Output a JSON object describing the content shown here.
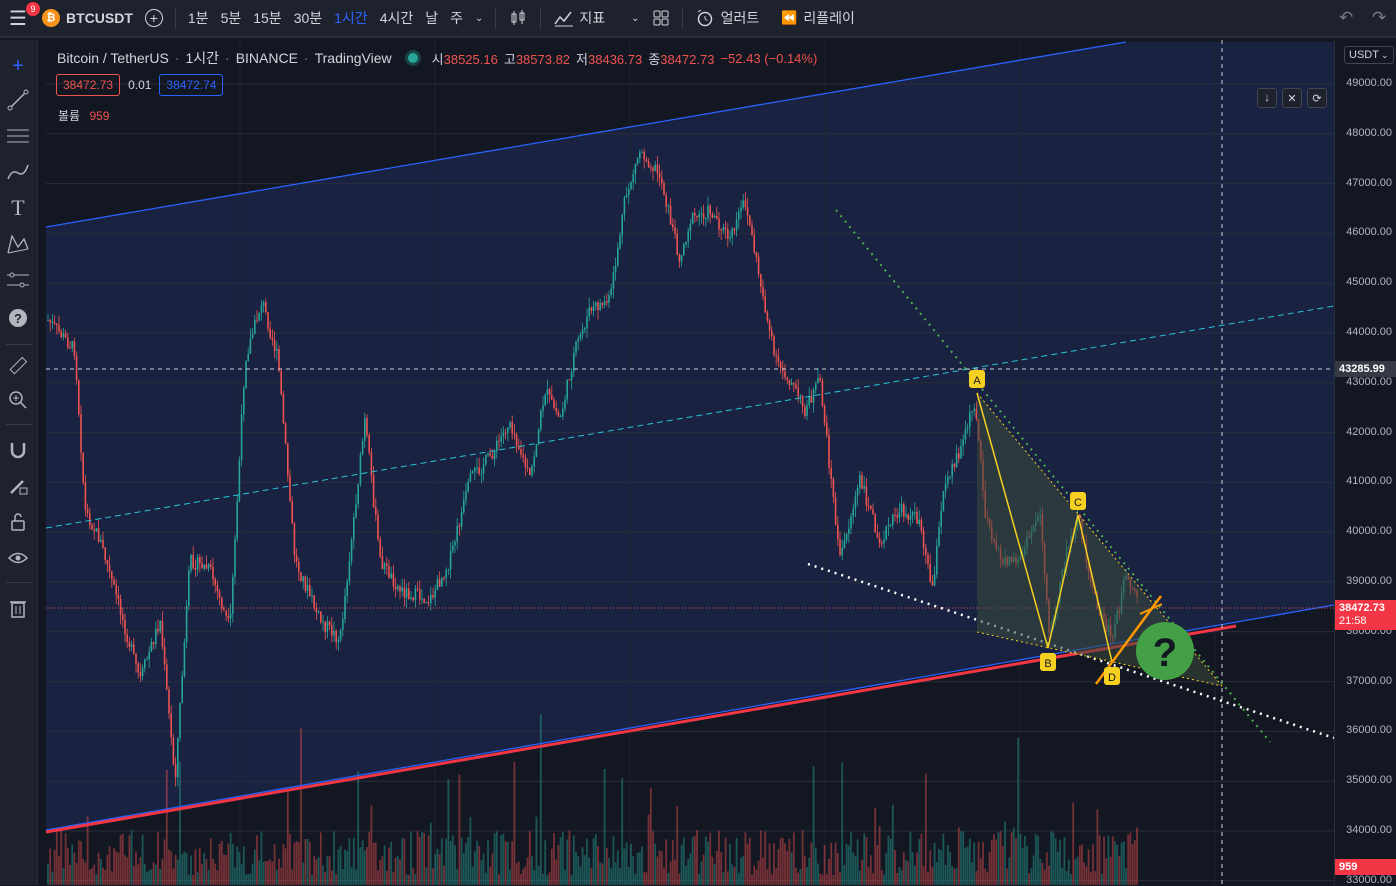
{
  "topbar": {
    "menu_icon": "hamburger-icon",
    "notification_count": "9",
    "coin_symbol": "₿",
    "symbol": "BTCUSDT",
    "intervals": [
      "1분",
      "5분",
      "15분",
      "30분",
      "1시간",
      "4시간",
      "날",
      "주"
    ],
    "active_interval": "1시간",
    "indicators_label": "지표",
    "alerts_label": "얼러트",
    "replay_label": "리플레이"
  },
  "legend": {
    "pair": "Bitcoin / TetherUS",
    "interval": "1시간",
    "exchange": "BINANCE",
    "source": "TradingView",
    "open_label": "시",
    "open": "38525.16",
    "high_label": "고",
    "high": "38573.82",
    "low_label": "저",
    "low": "38436.73",
    "close_label": "종",
    "close": "38472.73",
    "change": "−52.43 (−0.14%)",
    "sell_price": "38472.73",
    "spread": "0.01",
    "buy_price": "38472.74",
    "volume_label": "볼륨",
    "volume": "959"
  },
  "price_scale": {
    "currency": "USDT",
    "labels": [
      "49000.00",
      "48000.00",
      "47000.00",
      "46000.00",
      "45000.00",
      "44000.00",
      "43000.00",
      "42000.00",
      "41000.00",
      "40000.00",
      "39000.00",
      "38000.00",
      "37000.00",
      "36000.00",
      "35000.00",
      "34000.00",
      "33000.00"
    ],
    "crosshair_price": "43285.99",
    "last_price": "38472.73",
    "countdown": "21:58",
    "volume_tag": "959"
  },
  "pattern_points": [
    "A",
    "B",
    "C",
    "D"
  ],
  "question_mark": "?",
  "colors": {
    "background": "#131722",
    "up": "#26a69a",
    "down": "#ef5350",
    "channel": "#2962ff",
    "support": "#f23645",
    "pattern": "#f5d020",
    "accent": "#2962ff"
  }
}
